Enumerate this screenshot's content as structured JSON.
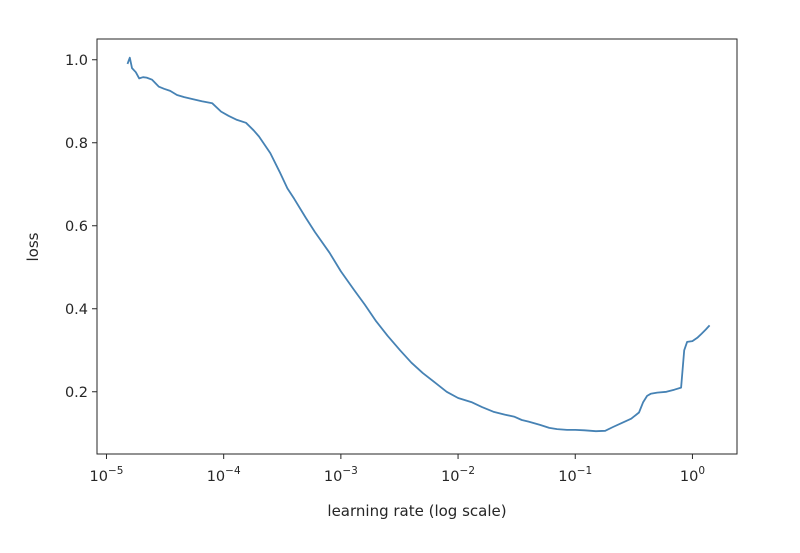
{
  "chart_data": {
    "type": "line",
    "title": "",
    "xlabel": "learning rate (log scale)",
    "ylabel": "loss",
    "xscale": "log",
    "xlim": [
      8.3e-06,
      2.4
    ],
    "ylim": [
      0.05,
      1.05
    ],
    "grid": false,
    "legend": "none",
    "line_color": "#4682b4",
    "x_ticks": [
      {
        "value": 1e-05,
        "base": "10",
        "exp": "−5"
      },
      {
        "value": 0.0001,
        "base": "10",
        "exp": "−4"
      },
      {
        "value": 0.001,
        "base": "10",
        "exp": "−3"
      },
      {
        "value": 0.01,
        "base": "10",
        "exp": "−2"
      },
      {
        "value": 0.1,
        "base": "10",
        "exp": "−1"
      },
      {
        "value": 1,
        "base": "10",
        "exp": "0"
      }
    ],
    "y_ticks": [
      {
        "value": 0.2,
        "label": "0.2"
      },
      {
        "value": 0.4,
        "label": "0.4"
      },
      {
        "value": 0.6,
        "label": "0.6"
      },
      {
        "value": 0.8,
        "label": "0.8"
      },
      {
        "value": 1.0,
        "label": "1.0"
      }
    ],
    "series": [
      {
        "x": [
          1.51e-05,
          1.58e-05,
          1.65e-05,
          1.78e-05,
          1.9e-05,
          2.05e-05,
          2.2e-05,
          2.45e-05,
          2.8e-05,
          3.1e-05,
          3.5e-05,
          4e-05,
          4.6e-05,
          5.5e-05,
          6.5e-05,
          8e-05,
          9.5e-05,
          0.00011,
          0.00013,
          0.000155,
          0.00018,
          0.0002,
          0.00025,
          0.0003,
          0.00035,
          0.0004,
          0.0005,
          0.0006,
          0.0008,
          0.001,
          0.0013,
          0.0016,
          0.002,
          0.0025,
          0.0032,
          0.004,
          0.005,
          0.0065,
          0.008,
          0.01,
          0.013,
          0.016,
          0.02,
          0.025,
          0.03,
          0.035,
          0.04,
          0.05,
          0.06,
          0.07,
          0.085,
          0.1,
          0.12,
          0.15,
          0.18,
          0.21,
          0.25,
          0.3,
          0.35,
          0.38,
          0.41,
          0.44,
          0.5,
          0.6,
          0.7,
          0.8,
          0.85,
          0.9,
          1.0,
          1.1,
          1.2,
          1.3,
          1.4
        ],
        "y": [
          0.99,
          1.005,
          0.98,
          0.97,
          0.955,
          0.958,
          0.957,
          0.952,
          0.935,
          0.93,
          0.925,
          0.915,
          0.91,
          0.905,
          0.9,
          0.895,
          0.875,
          0.865,
          0.855,
          0.848,
          0.83,
          0.815,
          0.775,
          0.73,
          0.69,
          0.665,
          0.62,
          0.585,
          0.535,
          0.49,
          0.445,
          0.41,
          0.37,
          0.335,
          0.3,
          0.27,
          0.245,
          0.22,
          0.2,
          0.185,
          0.175,
          0.163,
          0.152,
          0.145,
          0.14,
          0.132,
          0.128,
          0.12,
          0.113,
          0.11,
          0.108,
          0.108,
          0.107,
          0.105,
          0.106,
          0.115,
          0.125,
          0.135,
          0.15,
          0.175,
          0.19,
          0.195,
          0.198,
          0.2,
          0.205,
          0.21,
          0.3,
          0.32,
          0.322,
          0.33,
          0.34,
          0.35,
          0.36
        ]
      }
    ]
  }
}
